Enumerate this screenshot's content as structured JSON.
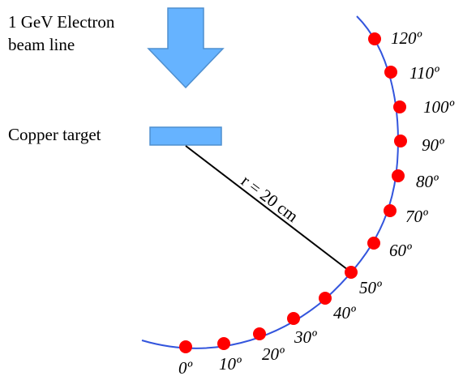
{
  "beam": {
    "label_line1": "1 GeV Electron",
    "label_line2": "beam line",
    "arrow_color": "#66b3ff",
    "arrow_stroke": "#4f8fcf"
  },
  "target": {
    "label": "Copper target",
    "color": "#66b3ff",
    "stroke": "#4f8fcf"
  },
  "radius": {
    "label": "r = 20 cm"
  },
  "arc": {
    "color": "#3355dd"
  },
  "detectors": {
    "color": "#ff0000",
    "angles": [
      {
        "label": "0º"
      },
      {
        "label": "10º"
      },
      {
        "label": "20º"
      },
      {
        "label": "30º"
      },
      {
        "label": "40º"
      },
      {
        "label": "50º"
      },
      {
        "label": "60º"
      },
      {
        "label": "70º"
      },
      {
        "label": "80º"
      },
      {
        "label": "90º"
      },
      {
        "label": "100º"
      },
      {
        "label": "110º"
      },
      {
        "label": "120º"
      }
    ]
  }
}
